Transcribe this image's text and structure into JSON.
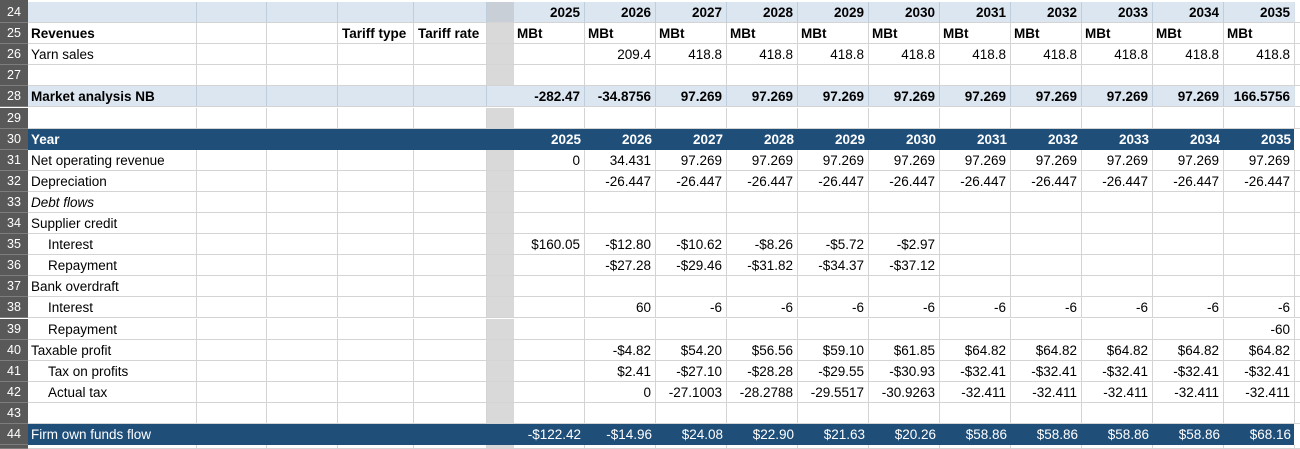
{
  "app": {
    "type": "spreadsheet-worksheet",
    "unit_label": "MBt"
  },
  "colors": {
    "band_light": "#dce6f1",
    "band_dark": "#1f4e79",
    "row_header_bg": "#595959",
    "row_header_text": "#ffffff",
    "separator_gray": "#d9d9d9",
    "separator_tint": "#c8cfd7",
    "gridline": "#d4d4d4",
    "gridline_on_light": "rgba(105,135,165,0.25)",
    "text": "#000000",
    "text_inverse": "#ffffff",
    "comment_marker": "#ff0000"
  },
  "years": [
    "2025",
    "2026",
    "2027",
    "2028",
    "2029",
    "2030",
    "2031",
    "2032",
    "2033",
    "2034",
    "2035"
  ],
  "rows": [
    {
      "num": "24",
      "kind": "light",
      "label": "",
      "values_bold": true,
      "values": [
        "2025",
        "2026",
        "2027",
        "2028",
        "2029",
        "2030",
        "2031",
        "2032",
        "2033",
        "2034",
        "2035"
      ]
    },
    {
      "num": "25",
      "kind": "white",
      "label": "Revenues",
      "bold": true,
      "d_label": "Tariff type",
      "e_label": "Tariff rate",
      "values_bold": true,
      "values_align": "left",
      "values": [
        "MBt",
        "MBt",
        "MBt",
        "MBt",
        "MBt",
        "MBt",
        "MBt",
        "MBt",
        "MBt",
        "MBt",
        "MBt"
      ]
    },
    {
      "num": "26",
      "kind": "white",
      "label": "Yarn sales",
      "values": [
        "",
        "209.4",
        "418.8",
        "418.8",
        "418.8",
        "418.8",
        "418.8",
        "418.8",
        "418.8",
        "418.8",
        "418.8"
      ]
    },
    {
      "num": "27",
      "kind": "white",
      "label": "",
      "values": []
    },
    {
      "num": "28",
      "kind": "light",
      "label": "Market analysis NB",
      "bold": true,
      "values_bold": true,
      "values": [
        "-282.47",
        "-34.8756",
        "97.269",
        "97.269",
        "97.269",
        "97.269",
        "97.269",
        "97.269",
        "97.269",
        "97.269",
        "166.5756"
      ]
    },
    {
      "num": "29",
      "kind": "white",
      "label": "",
      "values": []
    },
    {
      "num": "30",
      "kind": "dark",
      "label": "Year",
      "bold": true,
      "values_bold": true,
      "values": [
        "2025",
        "2026",
        "2027",
        "2028",
        "2029",
        "2030",
        "2031",
        "2032",
        "2033",
        "2034",
        "2035"
      ]
    },
    {
      "num": "31",
      "kind": "white",
      "label": "Net operating revenue",
      "values": [
        "0",
        "34.431",
        "97.269",
        "97.269",
        "97.269",
        "97.269",
        "97.269",
        "97.269",
        "97.269",
        "97.269",
        "97.269"
      ]
    },
    {
      "num": "32",
      "kind": "white",
      "label": "Depreciation",
      "comment_col": 1,
      "values": [
        "",
        "-26.447",
        "-26.447",
        "-26.447",
        "-26.447",
        "-26.447",
        "-26.447",
        "-26.447",
        "-26.447",
        "-26.447",
        "-26.447"
      ]
    },
    {
      "num": "33",
      "kind": "white",
      "label": "Debt flows",
      "italic": true,
      "values": []
    },
    {
      "num": "34",
      "kind": "white",
      "label": "Supplier credit",
      "values": []
    },
    {
      "num": "35",
      "kind": "white",
      "label": "Interest",
      "indent": true,
      "values": [
        "$160.05",
        "-$12.80",
        "-$10.62",
        "-$8.26",
        "-$5.72",
        "-$2.97",
        "",
        "",
        "",
        "",
        ""
      ]
    },
    {
      "num": "36",
      "kind": "white",
      "label": "Repayment",
      "indent": true,
      "values": [
        "",
        "-$27.28",
        "-$29.46",
        "-$31.82",
        "-$34.37",
        "-$37.12",
        "",
        "",
        "",
        "",
        ""
      ]
    },
    {
      "num": "37",
      "kind": "white",
      "label": "Bank overdraft",
      "values": []
    },
    {
      "num": "38",
      "kind": "white",
      "label": "Interest",
      "indent": true,
      "values": [
        "",
        "60",
        "-6",
        "-6",
        "-6",
        "-6",
        "-6",
        "-6",
        "-6",
        "-6",
        "-6"
      ]
    },
    {
      "num": "39",
      "kind": "white",
      "label": "Repayment",
      "indent": true,
      "values": [
        "",
        "",
        "",
        "",
        "",
        "",
        "",
        "",
        "",
        "",
        "-60"
      ]
    },
    {
      "num": "40",
      "kind": "white",
      "label": "Taxable profit",
      "values": [
        "",
        "-$4.82",
        "$54.20",
        "$56.56",
        "$59.10",
        "$61.85",
        "$64.82",
        "$64.82",
        "$64.82",
        "$64.82",
        "$64.82"
      ]
    },
    {
      "num": "41",
      "kind": "white",
      "label": "Tax on profits",
      "indent": true,
      "values": [
        "",
        "$2.41",
        "-$27.10",
        "-$28.28",
        "-$29.55",
        "-$30.93",
        "-$32.41",
        "-$32.41",
        "-$32.41",
        "-$32.41",
        "-$32.41"
      ]
    },
    {
      "num": "42",
      "kind": "white",
      "label": "Actual tax",
      "indent": true,
      "values": [
        "",
        "0",
        "-27.1003",
        "-28.2788",
        "-29.5517",
        "-30.9263",
        "-32.411",
        "-32.411",
        "-32.411",
        "-32.411",
        "-32.411"
      ]
    },
    {
      "num": "43",
      "kind": "white",
      "label": "",
      "values": []
    },
    {
      "num": "44",
      "kind": "dark",
      "label": "Firm own funds flow",
      "values": [
        "-$122.42",
        "-$14.96",
        "$24.08",
        "$22.90",
        "$21.63",
        "$20.26",
        "$58.86",
        "$58.86",
        "$58.86",
        "$58.86",
        "$68.16"
      ]
    },
    {
      "num": "45",
      "kind": "white",
      "label": "",
      "values": []
    }
  ]
}
